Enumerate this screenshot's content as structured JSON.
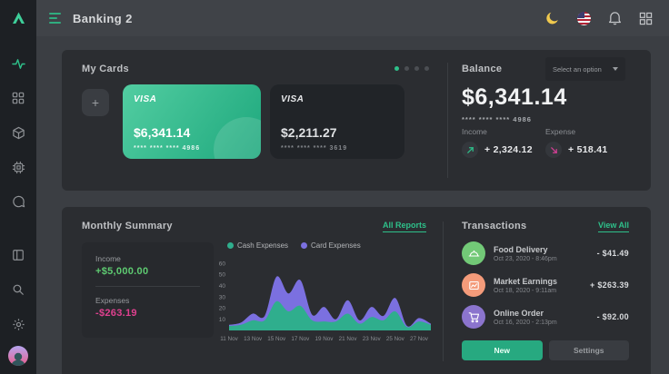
{
  "topbar": {
    "title": "Banking 2",
    "icons": [
      "menu-hamburger",
      "dark-mode-moon",
      "language-flag-us",
      "notifications-bell",
      "apps-grid"
    ]
  },
  "sidebar": {
    "icons_top": [
      "app-logo-triangle",
      "activity",
      "dashboard-grid",
      "package-box",
      "cpu-chip",
      "chat-bubble"
    ],
    "icons_bottom": [
      "layout-sidebar",
      "search",
      "settings-gear",
      "user-avatar"
    ]
  },
  "my_cards": {
    "heading": "My Cards",
    "add_label": "+",
    "carousel_dots": {
      "count": 4,
      "active": 0
    },
    "cards": [
      {
        "brand": "VISA",
        "amount": "$6,341.14",
        "number": "**** **** **** 4986"
      },
      {
        "brand": "VISA",
        "amount": "$2,211.27",
        "number": "**** **** **** 3619"
      }
    ]
  },
  "balance": {
    "heading": "Balance",
    "select_label": "Select an option",
    "amount": "$6,341.14",
    "number": "**** **** **** 4986",
    "income": {
      "label": "Income",
      "value": "+ 2,324.12",
      "icon": "arrow-up-right-icon"
    },
    "expense": {
      "label": "Expense",
      "value": "+ 518.41",
      "icon": "arrow-down-right-icon"
    }
  },
  "monthly_summary": {
    "heading": "Monthly Summary",
    "link": "All Reports",
    "income_label": "Income",
    "income_value": "+$5,000.00",
    "expenses_label": "Expenses",
    "expenses_value": "-$263.19"
  },
  "chart_data": {
    "type": "area",
    "stacked": true,
    "title": "Monthly Summary",
    "legend_position": "top",
    "grid": false,
    "ylim": [
      0,
      60
    ],
    "y_ticks": [
      10,
      20,
      30,
      40,
      50,
      60
    ],
    "x_labels": [
      "11 Nov",
      "13 Nov",
      "15 Nov",
      "17 Nov",
      "19 Nov",
      "21 Nov",
      "23 Nov",
      "25 Nov",
      "27 Nov"
    ],
    "x_label_every": 2,
    "series": [
      {
        "name": "Cash Expenses",
        "color": "#2fae8d",
        "values": [
          4,
          5,
          9,
          9,
          26,
          17,
          22,
          9,
          8,
          8,
          15,
          6,
          12,
          9,
          17,
          3,
          8,
          5
        ]
      },
      {
        "name": "Card Expenses",
        "color": "#7b70e0",
        "values": [
          1,
          2,
          6,
          4,
          22,
          16,
          23,
          5,
          13,
          2,
          12,
          3,
          9,
          4,
          12,
          1,
          3,
          1
        ]
      }
    ]
  },
  "transactions": {
    "heading": "Transactions",
    "link": "View All",
    "items": [
      {
        "title": "Food Delivery",
        "date": "Oct 23, 2020 - 8:46pm",
        "amount": "- $41.49",
        "icon": "food-cloche-icon",
        "color": "#72c977"
      },
      {
        "title": "Market Earnings",
        "date": "Oct 18, 2020 - 9:11am",
        "amount": "+ $263.39",
        "icon": "chart-frame-icon",
        "color": "#f49b7a"
      },
      {
        "title": "Online Order",
        "date": "Oct 16, 2020 - 2:13pm",
        "amount": "- $92.00",
        "icon": "shopping-cart-icon",
        "color": "#8b74cd"
      }
    ],
    "buttons": {
      "new": "New",
      "settings": "Settings"
    }
  },
  "colors": {
    "accent_green": "#2ec08a",
    "chart_green": "#2fae8d",
    "chart_purple": "#7b70e0",
    "income_text": "#5ecb71",
    "expense_text": "#e0408f",
    "moon_yellow": "#f0c94e",
    "card_gradient": [
      "#52cda1",
      "#1ea87d"
    ]
  }
}
